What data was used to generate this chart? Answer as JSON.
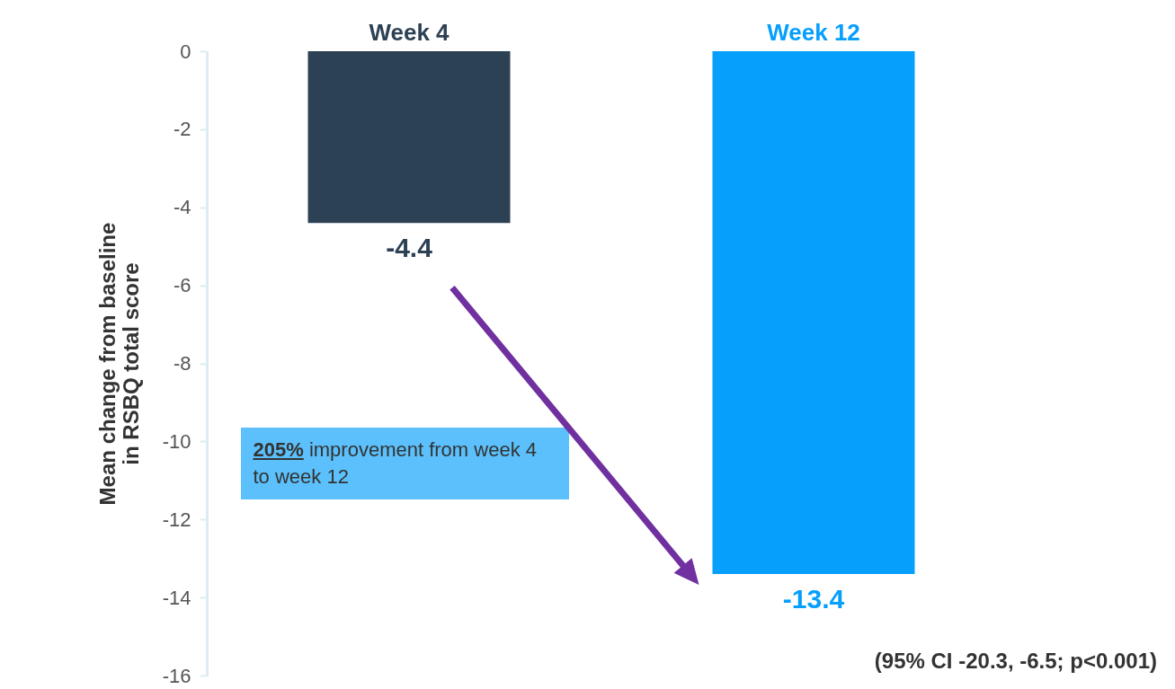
{
  "chart_data": {
    "type": "bar",
    "categories": [
      "Week 4",
      "Week 12"
    ],
    "values": [
      -4.4,
      -13.4
    ],
    "colors": [
      "#2d4154",
      "#069ffc"
    ],
    "ylabel": "Mean change from baseline in RSBQ total score",
    "ylim": [
      -16,
      0
    ],
    "yticks": [
      0,
      -2,
      -4,
      -6,
      -8,
      -10,
      -12,
      -14,
      -16
    ],
    "data_labels": true,
    "annotations": [
      "205% improvement from week 4 to week 12",
      "(95% CI -20.3, -6.5; p<0.001)"
    ]
  }
}
